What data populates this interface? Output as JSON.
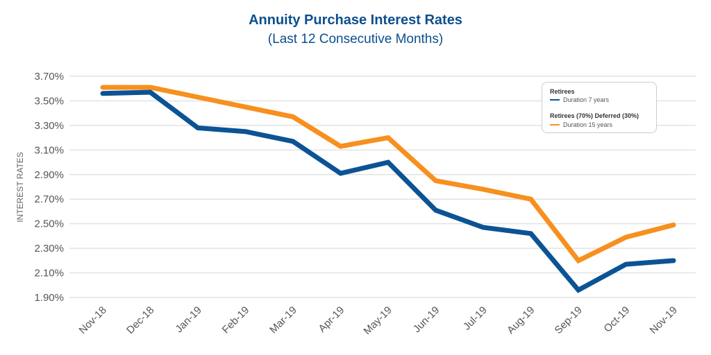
{
  "chart_data": {
    "type": "line",
    "title": "Annuity Purchase Interest Rates",
    "subtitle": "(Last 12 Consecutive Months)",
    "xlabel": "",
    "ylabel": "INTEREST RATES",
    "categories": [
      "Nov-18",
      "Dec-18",
      "Jan-19",
      "Feb-19",
      "Mar-19",
      "Apr-19",
      "May-19",
      "Jun-19",
      "Jul-19",
      "Aug-19",
      "Sep-19",
      "Oct-19",
      "Nov-19"
    ],
    "yticks": [
      "1.90%",
      "2.10%",
      "2.30%",
      "2.50%",
      "2.70%",
      "2.90%",
      "3.10%",
      "3.30%",
      "3.50%",
      "3.70%"
    ],
    "ylim": [
      1.9,
      3.7
    ],
    "grid": true,
    "legend_position": "top-right",
    "series": [
      {
        "group": "Retirees",
        "name": "Duration 7 years",
        "color": "#0b5394",
        "values": [
          3.56,
          3.57,
          3.28,
          3.25,
          3.17,
          2.91,
          3.0,
          2.61,
          2.47,
          2.42,
          1.96,
          2.17,
          2.2
        ]
      },
      {
        "group": "Retirees (70%) Deferred (30%)",
        "name": "Duration 15 years",
        "color": "#f7901e",
        "values": [
          3.61,
          3.61,
          3.53,
          3.45,
          3.37,
          3.13,
          3.2,
          2.85,
          2.78,
          2.7,
          2.2,
          2.39,
          2.49
        ]
      }
    ]
  }
}
